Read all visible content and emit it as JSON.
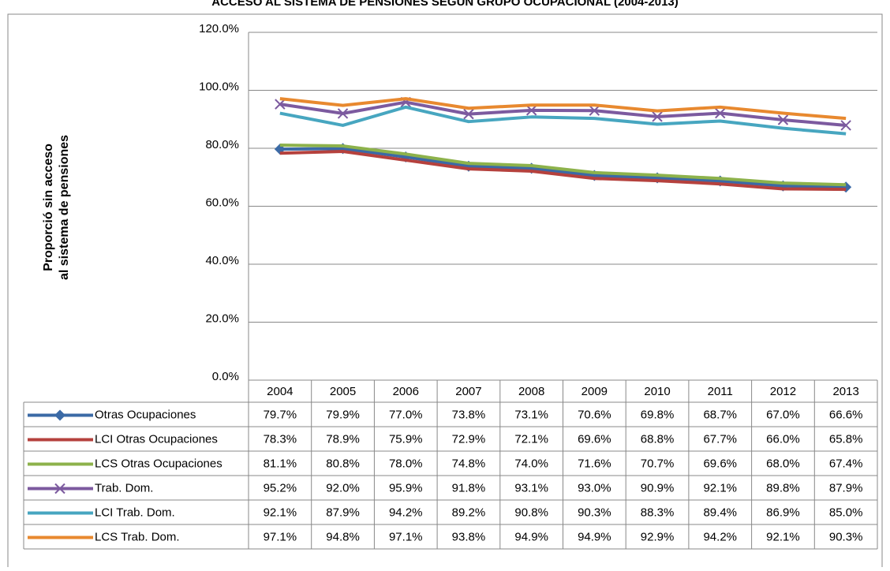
{
  "chart_data": {
    "type": "line",
    "title": "ACCESO AL SISTEMA DE PENSIONES SEGÚN GRUPO OCUPACIONAL (2004-2013)",
    "ylabel": [
      "Proporció  sin acceso",
      "al sistema de pensiones"
    ],
    "categories": [
      "2004",
      "2005",
      "2006",
      "2007",
      "2008",
      "2009",
      "2010",
      "2011",
      "2012",
      "2013"
    ],
    "ylim": [
      0,
      120
    ],
    "yticks": [
      {
        "value": 0,
        "label": "0.0%"
      },
      {
        "value": 20,
        "label": "20.0%"
      },
      {
        "value": 40,
        "label": "40.0%"
      },
      {
        "value": 60,
        "label": "60.0%"
      },
      {
        "value": 80,
        "label": "80.0%"
      },
      {
        "value": 100,
        "label": "100.0%"
      },
      {
        "value": 120,
        "label": "120.0%"
      }
    ],
    "grid": true,
    "series": [
      {
        "name": "Otras Ocupaciones",
        "color": "#3b6aa6",
        "marker": "diamond",
        "values": [
          79.7,
          79.9,
          77.0,
          73.8,
          73.1,
          70.6,
          69.8,
          68.7,
          67.0,
          66.6
        ],
        "value_labels": [
          "79.7%",
          "79.9%",
          "77.0%",
          "73.8%",
          "73.1%",
          "70.6%",
          "69.8%",
          "68.7%",
          "67.0%",
          "66.6%"
        ]
      },
      {
        "name": "LCI Otras Ocupaciones",
        "color": "#b5413d",
        "values": [
          78.3,
          78.9,
          75.9,
          72.9,
          72.1,
          69.6,
          68.8,
          67.7,
          66.0,
          65.8
        ],
        "value_labels": [
          "78.3%",
          "78.9%",
          "75.9%",
          "72.9%",
          "72.1%",
          "69.6%",
          "68.8%",
          "67.7%",
          "66.0%",
          "65.8%"
        ]
      },
      {
        "name": "LCS Otras Ocupaciones",
        "color": "#8db24b",
        "values": [
          81.1,
          80.8,
          78.0,
          74.8,
          74.0,
          71.6,
          70.7,
          69.6,
          68.0,
          67.4
        ],
        "value_labels": [
          "81.1%",
          "80.8%",
          "78.0%",
          "74.8%",
          "74.0%",
          "71.6%",
          "70.7%",
          "69.6%",
          "68.0%",
          "67.4%"
        ]
      },
      {
        "name": "Trab. Dom.",
        "color": "#7c5a9f",
        "marker": "x",
        "values": [
          95.2,
          92.0,
          95.9,
          91.8,
          93.1,
          93.0,
          90.9,
          92.1,
          89.8,
          87.9
        ],
        "value_labels": [
          "95.2%",
          "92.0%",
          "95.9%",
          "91.8%",
          "93.1%",
          "93.0%",
          "90.9%",
          "92.1%",
          "89.8%",
          "87.9%"
        ]
      },
      {
        "name": "LCI Trab. Dom.",
        "color": "#47a6c0",
        "values": [
          92.1,
          87.9,
          94.2,
          89.2,
          90.8,
          90.3,
          88.3,
          89.4,
          86.9,
          85.0
        ],
        "value_labels": [
          "92.1%",
          "87.9%",
          "94.2%",
          "89.2%",
          "90.8%",
          "90.3%",
          "88.3%",
          "89.4%",
          "86.9%",
          "85.0%"
        ]
      },
      {
        "name": "LCS Trab. Dom.",
        "color": "#e8892f",
        "values": [
          97.1,
          94.8,
          97.1,
          93.8,
          94.9,
          94.9,
          92.9,
          94.2,
          92.1,
          90.3
        ],
        "value_labels": [
          "97.1%",
          "94.8%",
          "97.1%",
          "93.8%",
          "94.9%",
          "94.9%",
          "92.9%",
          "94.2%",
          "92.1%",
          "90.3%"
        ]
      }
    ]
  }
}
